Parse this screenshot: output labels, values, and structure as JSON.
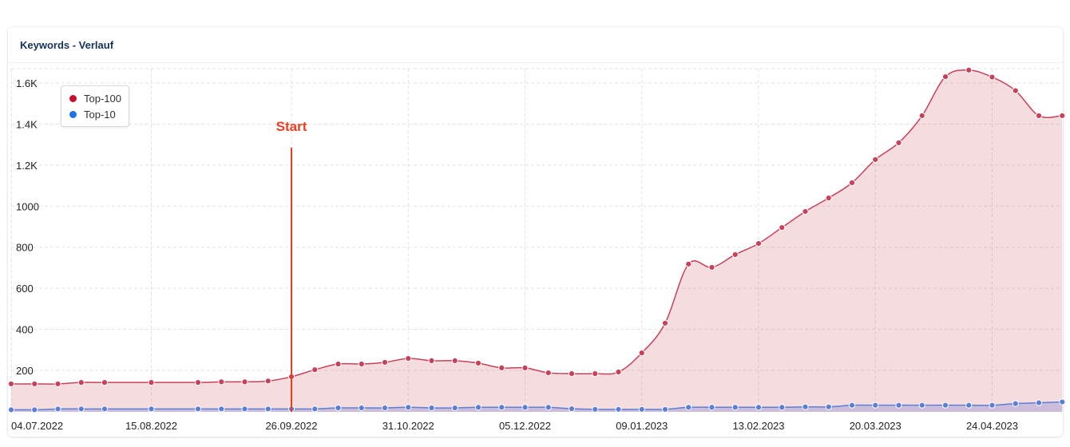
{
  "card": {
    "title": "Keywords - Verlauf"
  },
  "chart_data": {
    "type": "area",
    "title": "Keywords - Verlauf",
    "xlabel": "",
    "ylabel": "",
    "ylim": [
      0,
      1700
    ],
    "yticks": [
      {
        "value": 200,
        "label": "200"
      },
      {
        "value": 400,
        "label": "400"
      },
      {
        "value": 600,
        "label": "600"
      },
      {
        "value": 800,
        "label": "800"
      },
      {
        "value": 1000,
        "label": "1000"
      },
      {
        "value": 1200,
        "label": "1.2K"
      },
      {
        "value": 1400,
        "label": "1.4K"
      },
      {
        "value": 1600,
        "label": "1.6K"
      }
    ],
    "xticks": [
      "04.07.2022",
      "15.08.2022",
      "26.09.2022",
      "31.10.2022",
      "05.12.2022",
      "09.01.2023",
      "13.02.2023",
      "20.03.2023",
      "24.04.2023"
    ],
    "grid": true,
    "legend_placement": "top-left",
    "x": [
      "04.07.2022",
      "11.07.2022",
      "18.07.2022",
      "25.07.2022",
      "01.08.2022",
      "15.08.2022",
      "29.08.2022",
      "05.09.2022",
      "12.09.2022",
      "19.09.2022",
      "26.09.2022",
      "03.10.2022",
      "10.10.2022",
      "17.10.2022",
      "24.10.2022",
      "31.10.2022",
      "07.11.2022",
      "14.11.2022",
      "21.11.2022",
      "28.11.2022",
      "05.12.2022",
      "12.12.2022",
      "19.12.2022",
      "26.12.2022",
      "02.01.2023",
      "09.01.2023",
      "16.01.2023",
      "23.01.2023",
      "30.01.2023",
      "06.02.2023",
      "13.02.2023",
      "20.02.2023",
      "27.02.2023",
      "06.03.2023",
      "13.03.2023",
      "20.03.2023",
      "27.03.2023",
      "03.04.2023",
      "10.04.2023",
      "17.04.2023",
      "24.04.2023",
      "01.05.2023",
      "08.05.2023",
      "15.05.2023"
    ],
    "series": [
      {
        "name": "Top-100",
        "color": "#c8102e",
        "values": [
          134,
          134,
          134,
          141,
          141,
          141,
          141,
          144,
          144,
          148,
          169,
          203,
          231,
          231,
          239,
          258,
          247,
          247,
          235,
          212,
          212,
          188,
          184,
          184,
          192,
          285,
          430,
          718,
          702,
          764,
          818,
          896,
          974,
          1040,
          1114,
          1227,
          1309,
          1441,
          1631,
          1663,
          1629,
          1563,
          1441,
          1441
        ]
      },
      {
        "name": "Top-10",
        "color": "#1a73e8",
        "values": [
          8,
          8,
          12,
          12,
          12,
          12,
          12,
          12,
          12,
          12,
          12,
          12,
          17,
          17,
          17,
          20,
          17,
          17,
          20,
          20,
          20,
          20,
          13,
          10,
          10,
          10,
          10,
          20,
          20,
          20,
          20,
          20,
          22,
          22,
          30,
          30,
          30,
          30,
          30,
          30,
          30,
          38,
          42,
          46
        ]
      }
    ],
    "annotations": [
      {
        "label": "Start",
        "x": "26.09.2022",
        "color": "#f03c1e"
      }
    ]
  }
}
